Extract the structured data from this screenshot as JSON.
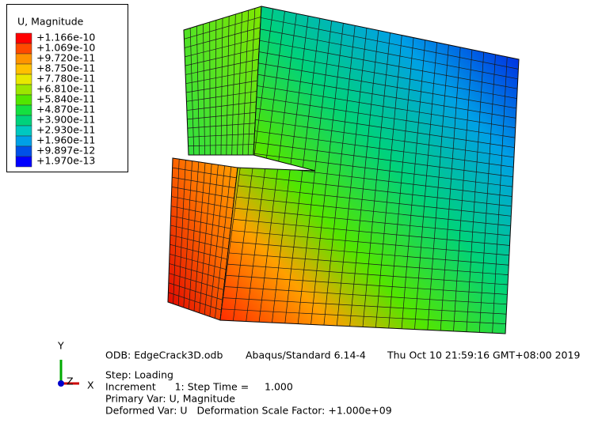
{
  "legend": {
    "title": "U, Magnitude",
    "labels": [
      "+1.166e-10",
      "+1.069e-10",
      "+9.720e-11",
      "+8.750e-11",
      "+7.780e-11",
      "+6.810e-11",
      "+5.840e-11",
      "+4.870e-11",
      "+3.900e-11",
      "+2.930e-11",
      "+1.960e-11",
      "+9.897e-12",
      "+1.970e-13"
    ],
    "colors": [
      "#ff0000",
      "#ff4a00",
      "#ff9400",
      "#ffc000",
      "#e8e800",
      "#9ce600",
      "#52e600",
      "#14e040",
      "#00d27c",
      "#00c8c0",
      "#00a0e6",
      "#0050e8",
      "#0000ff"
    ]
  },
  "info": {
    "odb": "ODB: EdgeCrack3D.odb",
    "solver": "Abaqus/Standard 6.14-4",
    "date": "Thu Oct 10 21:59:16 GMT+08:00 2019",
    "step": "Step: Loading",
    "increment": "Increment      1: Step Time =     1.000",
    "primary": "Primary Var: U, Magnitude",
    "deformed": "Deformed Var: U   Deformation Scale Factor: +1.000e+09"
  },
  "triad": {
    "y": "Y",
    "z": "Z",
    "x": "X"
  }
}
